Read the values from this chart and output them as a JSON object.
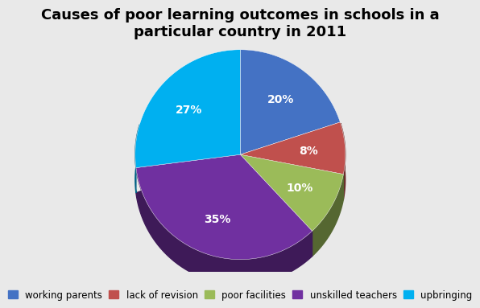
{
  "title": "Causes of poor learning outcomes in schools in a\nparticular country in 2011",
  "slices": [
    20,
    8,
    10,
    35,
    27
  ],
  "labels": [
    "working parents",
    "lack of revision",
    "poor facilities",
    "unskilled teachers",
    "upbringing"
  ],
  "colors": [
    "#4472C4",
    "#C0504D",
    "#9BBB59",
    "#7030A0",
    "#00B0F0"
  ],
  "pct_labels": [
    "20%",
    "8%",
    "10%",
    "35%",
    "27%"
  ],
  "startangle": 90,
  "background_color": "#E9E9E9",
  "title_fontsize": 13,
  "legend_fontsize": 8.5,
  "pct_fontsize": 10,
  "pct_color": "white",
  "depth": 0.12,
  "shadow_color": "#3D1A5E"
}
